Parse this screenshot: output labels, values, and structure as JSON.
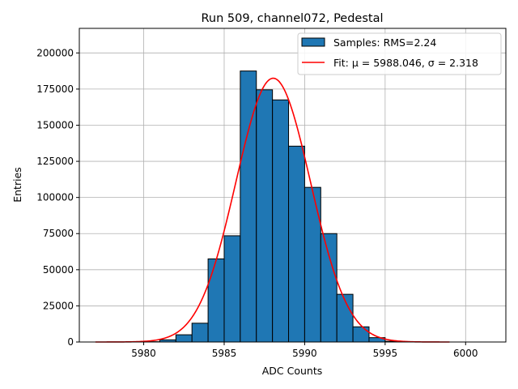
{
  "chart_data": {
    "type": "bar",
    "title": "Run 509, channel072, Pedestal",
    "xlabel": "ADC Counts",
    "ylabel": "Entries",
    "xlim": [
      5976.0,
      6002.5
    ],
    "ylim": [
      0,
      217000
    ],
    "grid": true,
    "legend_position": "top-right",
    "xticks": [
      5980,
      5985,
      5990,
      5995,
      6000
    ],
    "xtick_labels": [
      "5980",
      "5985",
      "5990",
      "5995",
      "6000"
    ],
    "yticks": [
      0,
      25000,
      50000,
      75000,
      100000,
      125000,
      150000,
      175000,
      200000
    ],
    "ytick_labels": [
      "0",
      "25000",
      "50000",
      "75000",
      "100000",
      "125000",
      "150000",
      "175000",
      "200000"
    ],
    "bin_width": 1,
    "bins": [
      {
        "left": 5980,
        "value": 200
      },
      {
        "left": 5981,
        "value": 1500
      },
      {
        "left": 5982,
        "value": 5000
      },
      {
        "left": 5983,
        "value": 13000
      },
      {
        "left": 5984,
        "value": 57500
      },
      {
        "left": 5985,
        "value": 73500
      },
      {
        "left": 5986,
        "value": 187500
      },
      {
        "left": 5987,
        "value": 174500
      },
      {
        "left": 5988,
        "value": 167500
      },
      {
        "left": 5989,
        "value": 135500
      },
      {
        "left": 5990,
        "value": 107000
      },
      {
        "left": 5991,
        "value": 75000
      },
      {
        "left": 5992,
        "value": 33000
      },
      {
        "left": 5993,
        "value": 10500
      },
      {
        "left": 5994,
        "value": 3000
      },
      {
        "left": 5995,
        "value": 500
      }
    ],
    "fit": {
      "mu": 5988.046,
      "sigma": 2.318,
      "amplitude": 182500,
      "x_range": [
        5977,
        5999
      ]
    },
    "series": [
      {
        "name": "Samples: RMS=2.24",
        "type": "bar",
        "color": "#1f77b4"
      },
      {
        "name": "Fit: μ = 5988.046, σ = 2.318",
        "type": "line",
        "color": "#ff0000"
      }
    ]
  }
}
